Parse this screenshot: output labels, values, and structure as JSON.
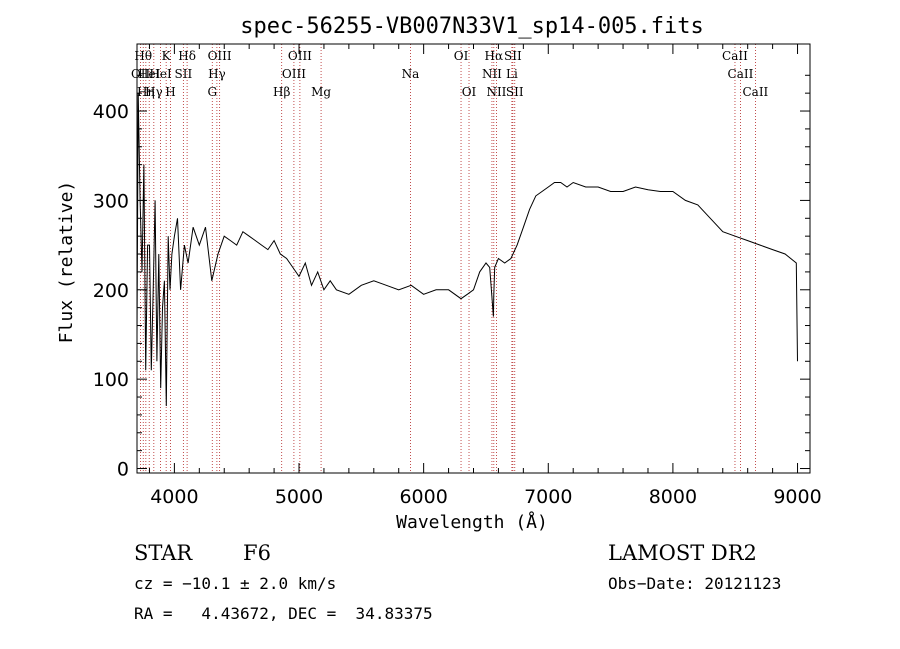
{
  "chart_data": {
    "type": "line",
    "title": "spec-56255-VB007N33V1_sp14-005.fits",
    "xlabel": "Wavelength (Å)",
    "ylabel": "Flux (relative)",
    "xlim": [
      3700,
      9100
    ],
    "ylim": [
      -5,
      475
    ],
    "xticks": [
      4000,
      5000,
      6000,
      7000,
      8000,
      9000
    ],
    "yticks": [
      0,
      100,
      200,
      300,
      400
    ],
    "series": [
      {
        "x": [
          3700,
          3710,
          3725,
          3740,
          3755,
          3770,
          3785,
          3800,
          3815,
          3830,
          3845,
          3860,
          3875,
          3890,
          3905,
          3920,
          3935,
          3950,
          3965,
          3980,
          4000,
          4025,
          4050,
          4080,
          4110,
          4150,
          4200,
          4250,
          4300,
          4350,
          4400,
          4450,
          4500,
          4550,
          4600,
          4650,
          4700,
          4750,
          4800,
          4850,
          4900,
          4950,
          5000,
          5050,
          5100,
          5150,
          5200,
          5250,
          5300,
          5400,
          5500,
          5600,
          5700,
          5800,
          5900,
          6000,
          6100,
          6200,
          6300,
          6350,
          6400,
          6450,
          6500,
          6530,
          6560,
          6563,
          6570,
          6600,
          6650,
          6700,
          6750,
          6800,
          6850,
          6900,
          6950,
          7000,
          7050,
          7100,
          7150,
          7200,
          7300,
          7400,
          7500,
          7600,
          7700,
          7800,
          7900,
          8000,
          8100,
          8200,
          8300,
          8400,
          8500,
          8600,
          8700,
          8800,
          8900,
          8990,
          9000
        ],
        "values": [
          150,
          420,
          300,
          220,
          340,
          110,
          250,
          250,
          110,
          200,
          300,
          120,
          240,
          90,
          180,
          210,
          70,
          260,
          200,
          240,
          260,
          280,
          200,
          250,
          230,
          270,
          250,
          270,
          210,
          240,
          260,
          255,
          250,
          265,
          260,
          255,
          250,
          245,
          255,
          240,
          235,
          225,
          215,
          230,
          205,
          220,
          200,
          210,
          200,
          195,
          205,
          210,
          205,
          200,
          205,
          195,
          200,
          200,
          190,
          195,
          200,
          220,
          230,
          225,
          170,
          195,
          225,
          235,
          230,
          235,
          250,
          270,
          290,
          305,
          310,
          315,
          320,
          320,
          315,
          320,
          315,
          315,
          310,
          310,
          315,
          312,
          310,
          310,
          300,
          295,
          280,
          265,
          260,
          255,
          250,
          245,
          240,
          230,
          120
        ]
      }
    ],
    "lines": [
      {
        "x": 3729,
        "label": "OII",
        "row": 1
      },
      {
        "x": 3750,
        "label": "Hθ",
        "row": 0
      },
      {
        "x": 3771,
        "label": "Hη",
        "row": 2
      },
      {
        "x": 3798,
        "label": "HeI",
        "row": 1
      },
      {
        "x": 3835,
        "label": "Hγ",
        "row": 2
      },
      {
        "x": 3889,
        "label": "HeI",
        "row": 1
      },
      {
        "x": 3934,
        "label": "K",
        "row": 0
      },
      {
        "x": 3969,
        "label": "H",
        "row": 2
      },
      {
        "x": 4072,
        "label": "SII",
        "row": 1
      },
      {
        "x": 4102,
        "label": "Hδ",
        "row": 0
      },
      {
        "x": 4304,
        "label": "G",
        "row": 2
      },
      {
        "x": 4341,
        "label": "Hγ",
        "row": 1
      },
      {
        "x": 4363,
        "label": "OIII",
        "row": 0
      },
      {
        "x": 4861,
        "label": "Hβ",
        "row": 2
      },
      {
        "x": 4959,
        "label": "OIII",
        "row": 1
      },
      {
        "x": 5007,
        "label": "OIII",
        "row": 0
      },
      {
        "x": 5177,
        "label": "Mg",
        "row": 2
      },
      {
        "x": 5894,
        "label": "Na",
        "row": 1
      },
      {
        "x": 6300,
        "label": "OI",
        "row": 0
      },
      {
        "x": 6364,
        "label": "OI",
        "row": 2
      },
      {
        "x": 6548,
        "label": "NII",
        "row": 1
      },
      {
        "x": 6563,
        "label": "Hα",
        "row": 0
      },
      {
        "x": 6584,
        "label": "NII",
        "row": 2
      },
      {
        "x": 6708,
        "label": "Li",
        "row": 1
      },
      {
        "x": 6716,
        "label": "SII",
        "row": 0
      },
      {
        "x": 6731,
        "label": "SII",
        "row": 2
      },
      {
        "x": 8498,
        "label": "CaII",
        "row": 0
      },
      {
        "x": 8542,
        "label": "CaII",
        "row": 1
      },
      {
        "x": 8662,
        "label": "CaII",
        "row": 2
      }
    ],
    "grid": false,
    "legend": "none"
  },
  "footer": {
    "object_type": "STAR",
    "subclass": "F6",
    "survey": "LAMOST DR2",
    "cz": "cz = −10.1 ± 2.0 km/s",
    "obs_date": "Obs−Date: 20121123",
    "coords": "RA =   4.43672, DEC =  34.83375"
  },
  "colors": {
    "spectrum": "#000000",
    "line_markers": "#b22222",
    "axes": "#000000"
  }
}
